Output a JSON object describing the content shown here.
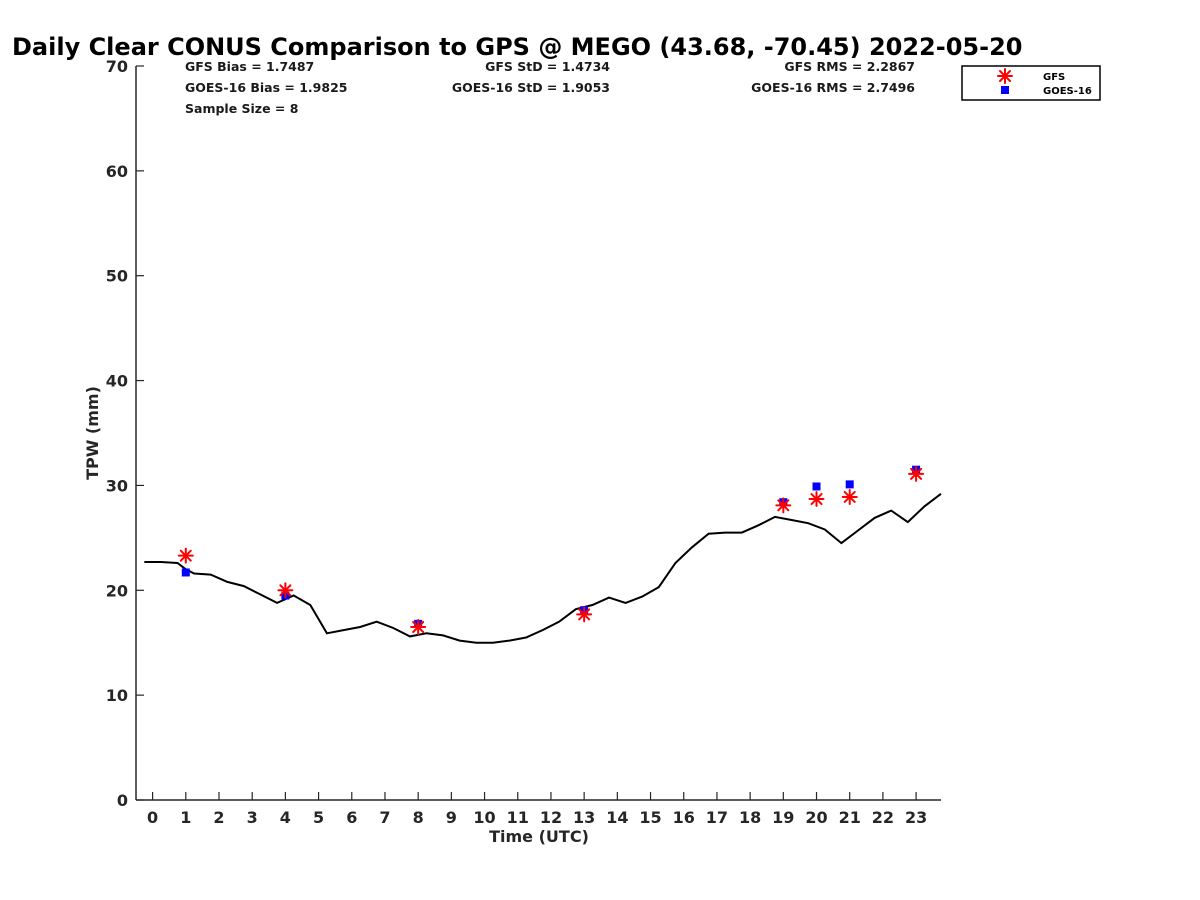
{
  "stats": {
    "gfs_bias": "GFS Bias = 1.7487",
    "goes_bias": "GOES-16 Bias = 1.9825",
    "sample_size": "Sample Size = 8",
    "gfs_std": "GFS StD = 1.4734",
    "goes_std": "GOES-16 StD = 1.9053",
    "gfs_rms": "GFS RMS = 2.2867",
    "goes_rms": "GOES-16 RMS = 2.7496"
  },
  "colors": {
    "gps_line": "#000000",
    "gfs": "#ff0000",
    "goes": "#0000ff"
  },
  "chart_data": {
    "type": "scatter",
    "title": "Daily Clear CONUS Comparison to GPS @ MEGO (43.68, -70.45) 2022-05-20",
    "xlabel": "Time (UTC)",
    "ylabel": "TPW (mm)",
    "xlim": [
      -0.5,
      23.75
    ],
    "ylim": [
      0,
      70
    ],
    "xticks": [
      0,
      1,
      2,
      3,
      4,
      5,
      6,
      7,
      8,
      9,
      10,
      11,
      12,
      13,
      14,
      15,
      16,
      17,
      18,
      19,
      20,
      21,
      22,
      23
    ],
    "yticks": [
      0,
      10,
      20,
      30,
      40,
      50,
      60,
      70
    ],
    "grid": false,
    "legend_position": "top-right",
    "series": [
      {
        "marker": "line",
        "x": [
          -0.25,
          0.25,
          0.75,
          1.0,
          1.25,
          1.75,
          2.25,
          2.75,
          3.25,
          3.75,
          4.25,
          4.75,
          5.25,
          5.75,
          6.25,
          6.75,
          7.25,
          7.75,
          8.25,
          8.75,
          9.25,
          9.75,
          10.25,
          10.75,
          11.25,
          11.75,
          12.25,
          12.75,
          13.25,
          13.75,
          14.25,
          14.75,
          15.25,
          15.75,
          16.25,
          16.75,
          17.25,
          17.75,
          18.25,
          18.75,
          19.25,
          19.75,
          20.25,
          20.75,
          21.25,
          21.75,
          22.25,
          22.75,
          23.25,
          23.75
        ],
        "y": [
          22.7,
          22.7,
          22.6,
          22.0,
          21.6,
          21.5,
          20.8,
          20.4,
          19.6,
          18.8,
          19.5,
          18.6,
          15.9,
          16.2,
          16.5,
          17.0,
          16.4,
          15.6,
          15.9,
          15.7,
          15.2,
          15.0,
          15.0,
          15.2,
          15.5,
          16.2,
          17.0,
          18.2,
          18.6,
          19.3,
          18.8,
          19.4,
          20.3,
          22.6,
          24.1,
          25.4,
          25.5,
          25.5,
          26.2,
          27.0,
          26.7,
          26.4,
          25.8,
          24.5,
          25.7,
          26.9,
          27.6,
          26.5,
          28.0,
          29.2
        ]
      },
      {
        "name": "GFS",
        "marker": "asterisk",
        "x": [
          1,
          4,
          8,
          13,
          19,
          20,
          21,
          23
        ],
        "y": [
          23.3,
          20.0,
          16.5,
          17.7,
          28.1,
          28.7,
          28.9,
          31.1
        ]
      },
      {
        "name": "GOES-16",
        "marker": "square",
        "x": [
          1,
          4,
          8,
          13,
          19,
          20,
          21,
          23
        ],
        "y": [
          21.7,
          19.5,
          16.8,
          18.1,
          28.4,
          29.9,
          30.1,
          31.5
        ]
      }
    ]
  }
}
